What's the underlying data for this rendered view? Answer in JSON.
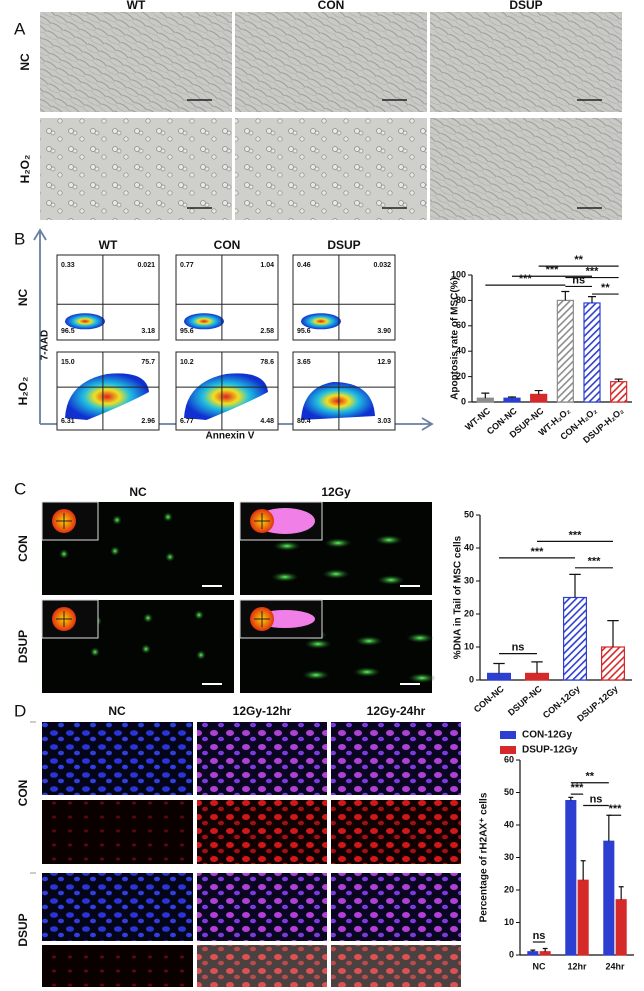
{
  "panels": {
    "a": {
      "label": "A",
      "columns": [
        "WT",
        "CON",
        "DSUP"
      ],
      "rows": [
        "NC",
        "H₂O₂"
      ]
    },
    "b": {
      "label": "B",
      "columns": [
        "WT",
        "CON",
        "DSUP"
      ],
      "rows": [
        "NC",
        "H₂O₂"
      ],
      "y_axis": "7-AAD",
      "x_axis": "Annexin V",
      "quadrants": [
        [
          [
            "0.33",
            "0.021",
            "96.5",
            "3.18"
          ],
          [
            "0.77",
            "1.04",
            "95.6",
            "2.58"
          ],
          [
            "0.46",
            "0.032",
            "95.6",
            "3.90"
          ]
        ],
        [
          [
            "15.0",
            "75.7",
            "6.31",
            "2.96"
          ],
          [
            "10.2",
            "78.6",
            "6.77",
            "4.48"
          ],
          [
            "3.65",
            "12.9",
            "80.4",
            "3.03"
          ]
        ]
      ]
    },
    "c": {
      "label": "C",
      "columns": [
        "NC",
        "12Gy"
      ],
      "rows": [
        "CON",
        "DSUP"
      ]
    },
    "d": {
      "label": "D",
      "columns": [
        "NC",
        "12Gy-12hr",
        "12Gy-24hr"
      ],
      "rows": [
        "CON",
        "DSUP"
      ]
    }
  },
  "chart_data": [
    {
      "type": "bar",
      "y_label": "Apoptosis rate of MSC(%)",
      "categories": [
        "WT-NC",
        "CON-NC",
        "DSUP-NC",
        "WT-H₂O₂",
        "CON-H₂O₂",
        "DSUP-H₂O₂"
      ],
      "values": [
        3,
        3,
        6,
        80,
        78,
        16
      ],
      "errors": [
        4,
        1,
        3,
        7,
        5,
        2
      ],
      "colors": [
        "#8c8c8c",
        "#2c3fd1",
        "#d62a2a",
        "#8c8c8c",
        "#2c3fd1",
        "#d62a2a"
      ],
      "hatched": [
        false,
        false,
        false,
        true,
        true,
        true
      ],
      "ylim": [
        0,
        100
      ],
      "yticks": [
        0,
        20,
        40,
        60,
        80,
        100
      ],
      "annotations": [
        "**",
        "***",
        "***",
        "ns",
        "**",
        "***"
      ]
    },
    {
      "type": "bar",
      "y_label": "%DNA in Tail of MSC cells",
      "categories": [
        "CON-NC",
        "DSUP-NC",
        "CON-12Gy",
        "DSUP-12Gy"
      ],
      "values": [
        2,
        2,
        25,
        10
      ],
      "errors": [
        3,
        3.5,
        7,
        8
      ],
      "colors": [
        "#2c3fd1",
        "#d62a2a",
        "#2c3fd1",
        "#d62a2a"
      ],
      "hatched": [
        false,
        false,
        true,
        true
      ],
      "ylim": [
        0,
        50
      ],
      "yticks": [
        0,
        10,
        20,
        30,
        40,
        50
      ],
      "annotations": [
        "***",
        "***",
        "***",
        "ns"
      ]
    },
    {
      "type": "grouped-bar",
      "y_label": "Percentage of rH2AX⁺ cells",
      "categories": [
        "NC",
        "12hr",
        "24hr"
      ],
      "series": [
        {
          "name": "CON-12Gy",
          "color": "#2c3fd1",
          "values": [
            1,
            47.5,
            35
          ],
          "errors": [
            0.5,
            1,
            8
          ]
        },
        {
          "name": "DSUP-12Gy",
          "color": "#d62a2a",
          "values": [
            1,
            23,
            17
          ],
          "errors": [
            1,
            6,
            4
          ]
        }
      ],
      "ylim": [
        0,
        60
      ],
      "yticks": [
        0,
        10,
        20,
        30,
        40,
        50,
        60
      ],
      "annotations": [
        "ns",
        "**",
        "***",
        "ns",
        "***"
      ]
    }
  ]
}
